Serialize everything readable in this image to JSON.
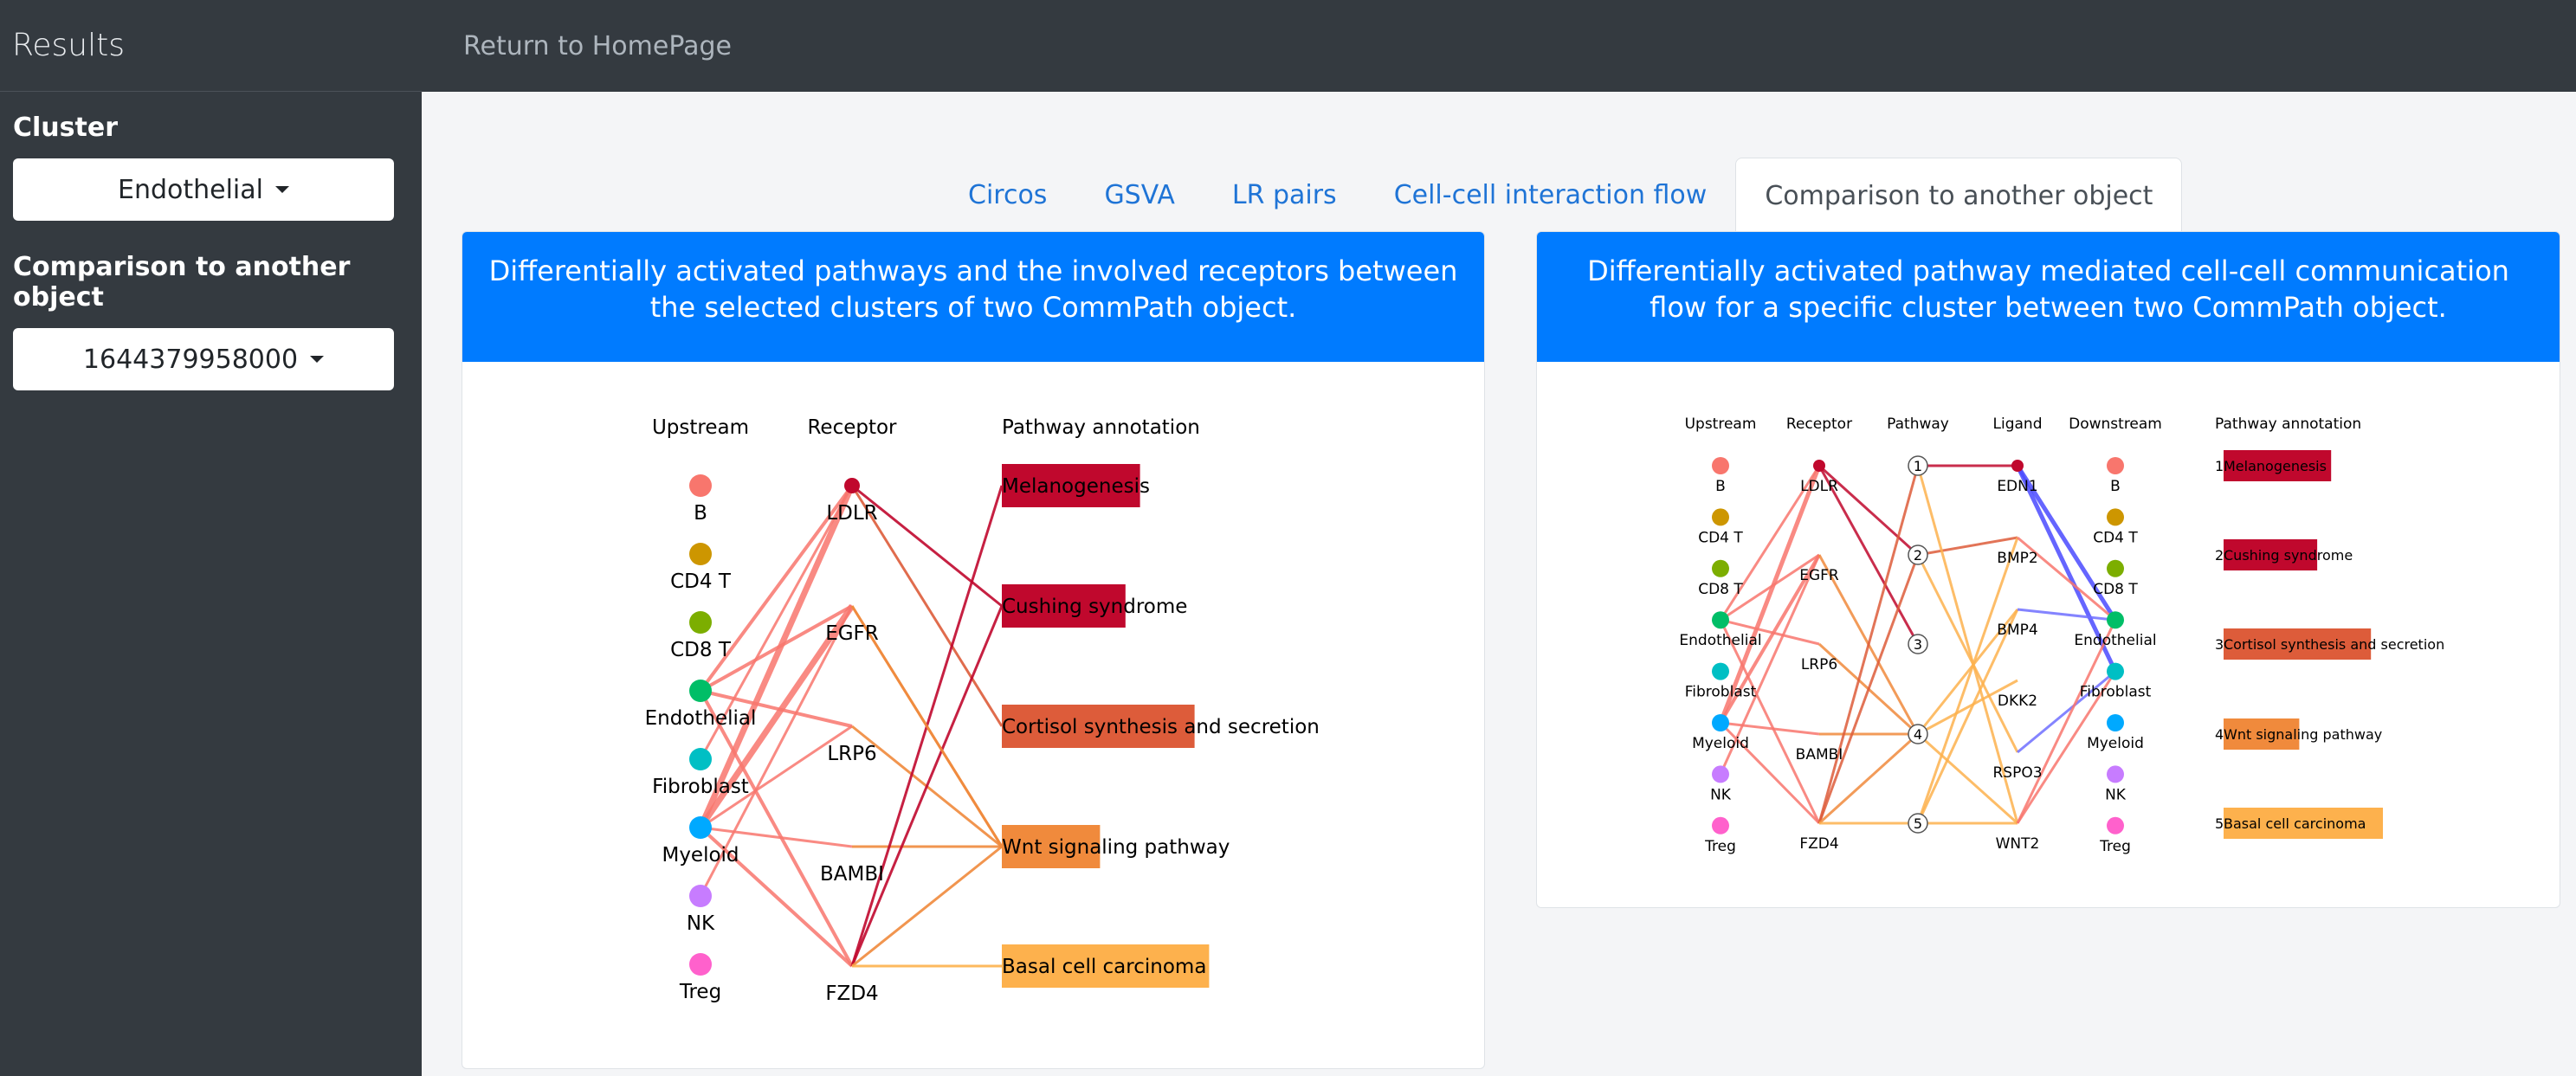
{
  "sidebar": {
    "title": "Results",
    "cluster_label": "Cluster",
    "cluster_value": "Endothelial",
    "comparison_label": "Comparison to another object",
    "comparison_value": "1644379958000"
  },
  "topbar": {
    "home_link": "Return to HomePage"
  },
  "tabs": [
    {
      "label": "Circos"
    },
    {
      "label": "GSVA"
    },
    {
      "label": "LR pairs"
    },
    {
      "label": "Cell-cell interaction flow"
    },
    {
      "label": "Comparison to another object",
      "active": true
    }
  ],
  "left_card": {
    "title": "Differentially activated pathways and the involved receptors between the selected clusters of two CommPath object.",
    "headers": {
      "upstream": "Upstream",
      "receptor": "Receptor",
      "pathway": "Pathway annotation"
    },
    "upstream": [
      {
        "label": "B",
        "color": "#f8766d"
      },
      {
        "label": "CD4 T",
        "color": "#cd9600"
      },
      {
        "label": "CD8 T",
        "color": "#7cae00"
      },
      {
        "label": "Endothelial",
        "color": "#00be67"
      },
      {
        "label": "Fibroblast",
        "color": "#00bfc4"
      },
      {
        "label": "Myeloid",
        "color": "#00a9ff"
      },
      {
        "label": "NK",
        "color": "#c77cff"
      },
      {
        "label": "Treg",
        "color": "#ff61cc"
      }
    ],
    "receptors": [
      "LDLR",
      "EGFR",
      "LRP6",
      "BAMBI",
      "FZD4"
    ],
    "pathways": [
      {
        "label": "Melanogenesis",
        "color": "#c0082d",
        "value": 0.38
      },
      {
        "label": "Cushing syndrome",
        "color": "#c0082d",
        "value": 0.34
      },
      {
        "label": "Cortisol synthesis and secretion",
        "color": "#dd5c3a",
        "value": 0.53
      },
      {
        "label": "Wnt signaling pathway",
        "color": "#f08a3c",
        "value": 0.27
      },
      {
        "label": "Basal cell carcinoma",
        "color": "#fdb14d",
        "value": 0.57
      }
    ]
  },
  "right_card": {
    "title": "Differentially activated pathway mediated cell-cell communication flow for a specific cluster between two CommPath object.",
    "headers": {
      "upstream": "Upstream",
      "receptor": "Receptor",
      "pathway": "Pathway",
      "ligand": "Ligand",
      "downstream": "Downstream",
      "annotation": "Pathway annotation"
    },
    "upstream": [
      "B",
      "CD4 T",
      "CD8 T",
      "Endothelial",
      "Fibroblast",
      "Myeloid",
      "NK",
      "Treg"
    ],
    "receptors": [
      "LDLR",
      "EGFR",
      "LRP6",
      "BAMBI",
      "FZD4"
    ],
    "pathway_nums": [
      "1",
      "2",
      "3",
      "4",
      "5"
    ],
    "ligands": [
      "EDN1",
      "BMP2",
      "BMP4",
      "DKK2",
      "RSPO3",
      "WNT2"
    ],
    "downstream": [
      "B",
      "CD4 T",
      "CD8 T",
      "Endothelial",
      "Fibroblast",
      "Myeloid",
      "NK",
      "Treg"
    ],
    "annotations": [
      {
        "num": "1",
        "label": "Melanogenesis",
        "color": "#c0082d",
        "value": 0.54
      },
      {
        "num": "2",
        "label": "Cushing syndrome",
        "color": "#c0082d",
        "value": 0.47
      },
      {
        "num": "3",
        "label": "Cortisol synthesis and secretion",
        "color": "#dd5c3a",
        "value": 0.74
      },
      {
        "num": "4",
        "label": "Wnt signaling pathway",
        "color": "#f08a3c",
        "value": 0.38
      },
      {
        "num": "5",
        "label": "Basal cell carcinoma",
        "color": "#fdb14d",
        "value": 0.8
      }
    ]
  }
}
